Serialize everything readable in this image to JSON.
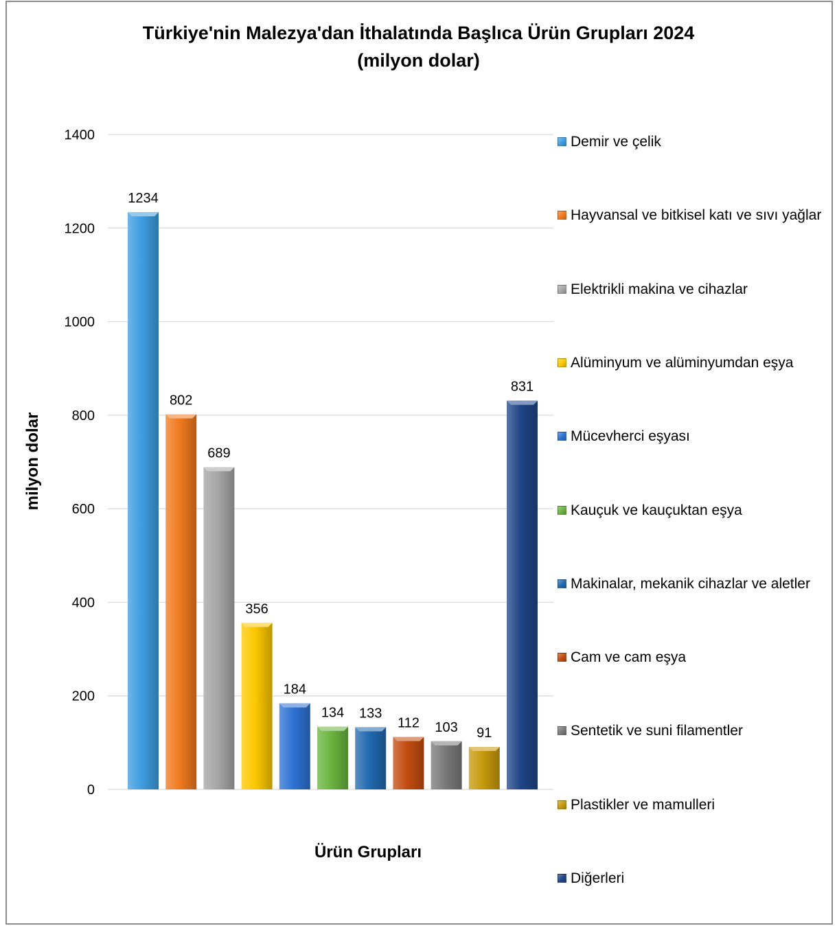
{
  "chart_data": {
    "type": "bar",
    "title_line1": "Türkiye'nin Malezya'dan İthalatında Başlıca Ürün Grupları 2024",
    "title_line2": "(milyon dolar)",
    "xlabel": "Ürün Grupları",
    "ylabel": "milyon dolar",
    "ylim": [
      0,
      1400
    ],
    "yticks": [
      "0",
      "200",
      "400",
      "600",
      "800",
      "1000",
      "1200",
      "1400"
    ],
    "grid": true,
    "legend_position": "right",
    "categories": [
      "Demir ve çelik",
      "Hayvansal ve bitkisel katı ve sıvı yağlar",
      "Elektrikli makina ve cihazlar",
      "Alüminyum ve alüminyumdan eşya",
      "Mücevherci eşyası",
      "Kauçuk ve kauçuktan eşya",
      "Makinalar, mekanik cihazlar ve aletler",
      "Cam ve cam eşya",
      "Sentetik ve suni filamentler",
      "Plastikler ve mamulleri",
      "Diğerleri"
    ],
    "values": [
      1234,
      802,
      689,
      356,
      184,
      134,
      133,
      112,
      103,
      91,
      831
    ],
    "data_labels": [
      "1234",
      "802",
      "689",
      "356",
      "184",
      "134",
      "133",
      "112",
      "103",
      "91",
      "831"
    ],
    "colors": [
      "#3e9de0",
      "#f07a1e",
      "#a6a6a6",
      "#fcc800",
      "#2d72d2",
      "#6ab440",
      "#2169b0",
      "#c24c10",
      "#7a7a7a",
      "#c69a0c",
      "#1f4587"
    ]
  }
}
